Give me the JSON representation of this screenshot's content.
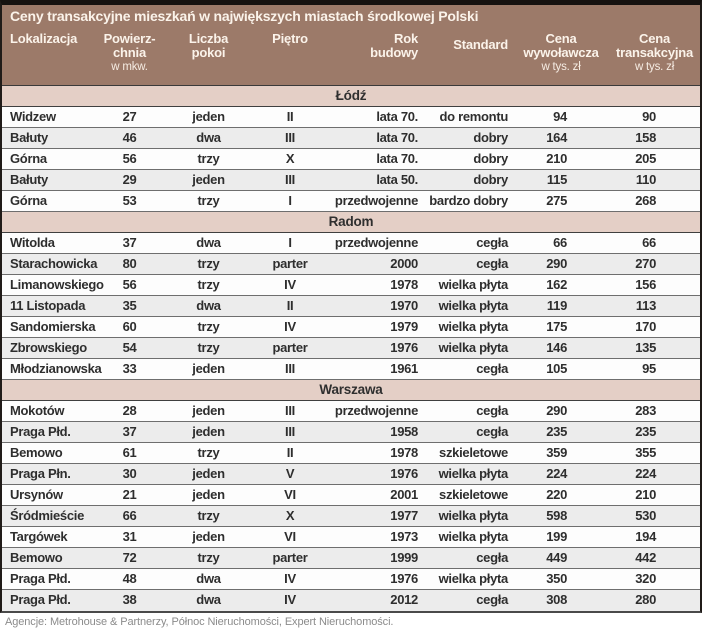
{
  "title": "Ceny transakcyjne mieszkań w największych miastach środkowej Polski",
  "footer": "Agencje: Metrohouse & Partnerzy, Północ Nieruchomości, Expert Nieruchomości.",
  "colors": {
    "header_bg": "#9c7a69",
    "header_text": "#fbf3ea",
    "section_bg": "#e4cfc6",
    "stripe": "#ececec"
  },
  "chart_data": {
    "type": "table",
    "columns": [
      {
        "key": "location",
        "line1": "Lokalizacja",
        "line2": "",
        "sub": ""
      },
      {
        "key": "area",
        "line1": "Powierz-",
        "line2": "chnia",
        "sub": "w mkw."
      },
      {
        "key": "rooms",
        "line1": "Liczba",
        "line2": "pokoi",
        "sub": ""
      },
      {
        "key": "floor",
        "line1": "Piętro",
        "line2": "",
        "sub": ""
      },
      {
        "key": "year-built",
        "line1": "Rok",
        "line2": "budowy",
        "sub": ""
      },
      {
        "key": "standard",
        "line1": "Standard",
        "line2": "",
        "sub": ""
      },
      {
        "key": "asking-price",
        "line1": "Cena",
        "line2": "wywoławcza",
        "sub": "w tys. zł"
      },
      {
        "key": "transaction-price",
        "line1": "Cena",
        "line2": "transakcyjna",
        "sub": "w tys. zł"
      }
    ],
    "sections": [
      {
        "name": "Łódź",
        "rows": [
          [
            "Widzew",
            "27",
            "jeden",
            "II",
            "lata 70.",
            "do remontu",
            "94",
            "90"
          ],
          [
            "Bałuty",
            "46",
            "dwa",
            "III",
            "lata 70.",
            "dobry",
            "164",
            "158"
          ],
          [
            "Górna",
            "56",
            "trzy",
            "X",
            "lata 70.",
            "dobry",
            "210",
            "205"
          ],
          [
            "Bałuty",
            "29",
            "jeden",
            "III",
            "lata 50.",
            "dobry",
            "115",
            "110"
          ],
          [
            "Górna",
            "53",
            "trzy",
            "I",
            "przedwojenne",
            "bardzo dobry",
            "275",
            "268"
          ]
        ]
      },
      {
        "name": "Radom",
        "rows": [
          [
            "Witolda",
            "37",
            "dwa",
            "I",
            "przedwojenne",
            "cegła",
            "66",
            "66"
          ],
          [
            "Starachowicka",
            "80",
            "trzy",
            "parter",
            "2000",
            "cegła",
            "290",
            "270"
          ],
          [
            "Limanowskiego",
            "56",
            "trzy",
            "IV",
            "1978",
            "wielka płyta",
            "162",
            "156"
          ],
          [
            "11 Listopada",
            "35",
            "dwa",
            "II",
            "1970",
            "wielka płyta",
            "119",
            "113"
          ],
          [
            "Sandomierska",
            "60",
            "trzy",
            "IV",
            "1979",
            "wielka płyta",
            "175",
            "170"
          ],
          [
            "Zbrowskiego",
            "54",
            "trzy",
            "parter",
            "1976",
            "wielka płyta",
            "146",
            "135"
          ],
          [
            "Młodzianowska",
            "33",
            "jeden",
            "III",
            "1961",
            "cegła",
            "105",
            "95"
          ]
        ]
      },
      {
        "name": "Warszawa",
        "rows": [
          [
            "Mokotów",
            "28",
            "jeden",
            "III",
            "przedwojenne",
            "cegła",
            "290",
            "283"
          ],
          [
            "Praga Płd.",
            "37",
            "jeden",
            "III",
            "1958",
            "cegła",
            "235",
            "235"
          ],
          [
            "Bemowo",
            "61",
            "trzy",
            "II",
            "1978",
            "szkieletowe",
            "359",
            "355"
          ],
          [
            "Praga Płn.",
            "30",
            "jeden",
            "V",
            "1976",
            "wielka płyta",
            "224",
            "224"
          ],
          [
            "Ursynów",
            "21",
            "jeden",
            "VI",
            "2001",
            "szkieletowe",
            "220",
            "210"
          ],
          [
            "Śródmieście",
            "66",
            "trzy",
            "X",
            "1977",
            "wielka płyta",
            "598",
            "530"
          ],
          [
            "Targówek",
            "31",
            "jeden",
            "VI",
            "1973",
            "wielka płyta",
            "199",
            "194"
          ],
          [
            "Bemowo",
            "72",
            "trzy",
            "parter",
            "1999",
            "cegła",
            "449",
            "442"
          ],
          [
            "Praga Płd.",
            "48",
            "dwa",
            "IV",
            "1976",
            "wielka płyta",
            "350",
            "320"
          ],
          [
            "Praga Płd.",
            "38",
            "dwa",
            "IV",
            "2012",
            "cegła",
            "308",
            "280"
          ]
        ]
      }
    ]
  }
}
